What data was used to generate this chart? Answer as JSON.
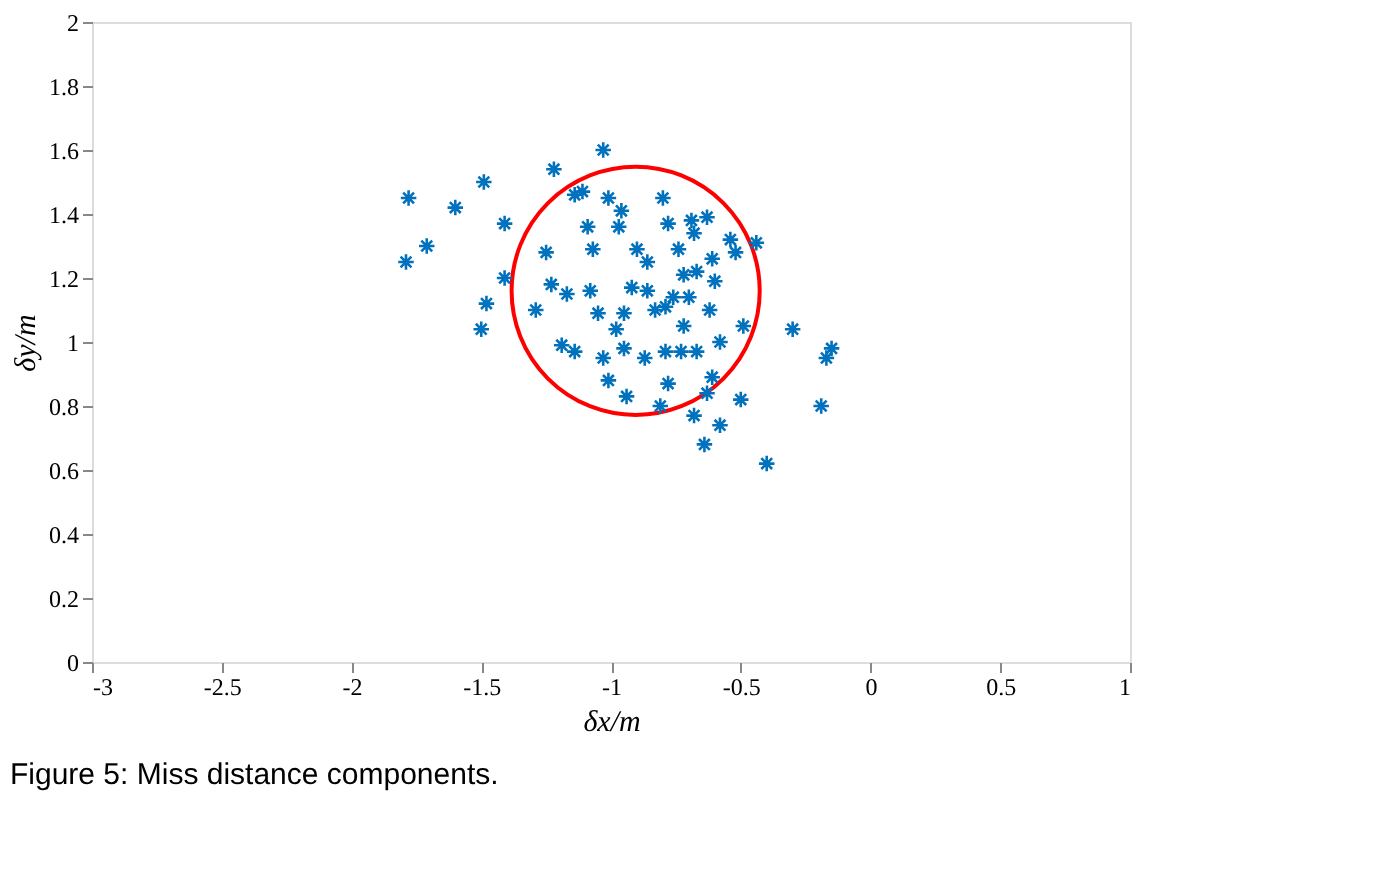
{
  "chart_data": {
    "type": "scatter",
    "xlabel": "δx/m",
    "ylabel": "δy/m",
    "annotations": [
      "Figure 5: Miss distance components."
    ],
    "xlim": [
      -3,
      1
    ],
    "xticks": [
      -3,
      -2.5,
      -2,
      -1.5,
      -1,
      -0.5,
      0,
      0.5,
      1
    ],
    "ylim": [
      0,
      2
    ],
    "yticks": [
      0,
      0.2,
      0.4,
      0.6,
      0.8,
      1,
      1.2,
      1.4,
      1.6,
      1.8,
      2
    ],
    "grid": false,
    "series": [
      {
        "marker": "cross",
        "color": "#0072bd",
        "x": [
          -1.78,
          -1.79,
          -1.71,
          -1.6,
          -1.49,
          -1.5,
          -1.48,
          -1.41,
          -1.41,
          -1.29,
          -1.25,
          -1.23,
          -1.22,
          -1.17,
          -1.19,
          -1.14,
          -1.14,
          -1.11,
          -1.09,
          -1.07,
          -1.03,
          -1.01,
          -0.96,
          -0.97,
          -1.08,
          -1.05,
          -1.03,
          -1.01,
          -0.94,
          -0.98,
          -0.95,
          -0.92,
          -0.95,
          -0.9,
          -0.86,
          -0.86,
          -0.87,
          -0.81,
          -0.8,
          -0.78,
          -0.79,
          -0.79,
          -0.78,
          -0.74,
          -0.72,
          -0.7,
          -0.72,
          -0.73,
          -0.69,
          -0.67,
          -0.63,
          -0.68,
          -0.61,
          -0.6,
          -0.62,
          -0.67,
          -0.58,
          -0.61,
          -0.63,
          -0.68,
          -0.58,
          -0.64,
          -0.54,
          -0.52,
          -0.44,
          -0.49,
          -0.5,
          -0.4,
          -0.3,
          -0.19,
          -0.15,
          -0.17,
          -0.83,
          -0.76
        ],
        "values": [
          1.45,
          1.25,
          1.3,
          1.42,
          1.5,
          1.04,
          1.12,
          1.37,
          1.2,
          1.1,
          1.28,
          1.18,
          1.54,
          1.15,
          0.99,
          0.97,
          1.46,
          1.47,
          1.36,
          1.29,
          1.6,
          1.45,
          1.41,
          1.36,
          1.16,
          1.09,
          0.95,
          0.88,
          0.83,
          1.04,
          1.09,
          1.17,
          0.98,
          1.29,
          1.25,
          1.16,
          0.95,
          0.8,
          1.45,
          1.37,
          1.11,
          0.97,
          0.87,
          1.29,
          1.21,
          1.14,
          1.05,
          0.97,
          1.38,
          1.22,
          1.39,
          1.34,
          1.26,
          1.19,
          1.1,
          0.97,
          1.0,
          0.89,
          0.84,
          0.77,
          0.74,
          0.68,
          1.32,
          1.28,
          1.31,
          1.05,
          0.82,
          0.62,
          1.04,
          0.8,
          0.98,
          0.95,
          1.1,
          1.14
        ]
      }
    ]
  }
}
